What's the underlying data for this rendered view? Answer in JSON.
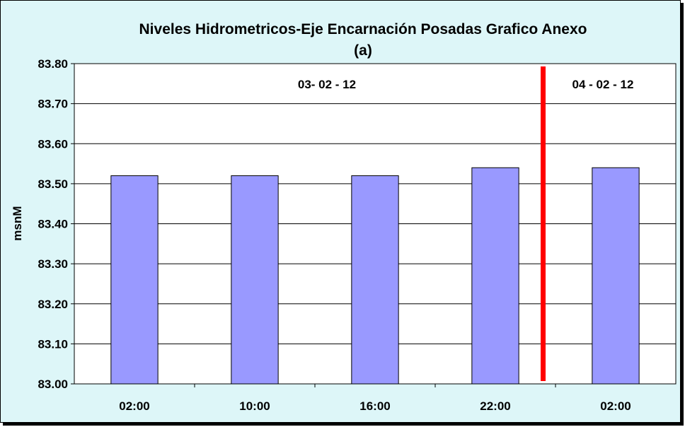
{
  "chart_data": {
    "type": "bar",
    "title": "Niveles Hidrometricos-Eje Encarnación Posadas Grafico Anexo",
    "subtitle": "(a)",
    "xlabel": "",
    "ylabel": "msnM",
    "categories": [
      "02:00",
      "10:00",
      "16:00",
      "22:00",
      "02:00"
    ],
    "values": [
      83.52,
      83.52,
      83.52,
      83.54,
      83.54
    ],
    "ylim": [
      83.0,
      83.8
    ],
    "yticks": [
      83.0,
      83.1,
      83.2,
      83.3,
      83.4,
      83.5,
      83.6,
      83.7,
      83.8
    ],
    "ytick_labels": [
      "83.00",
      "83.10",
      "83.20",
      "83.30",
      "83.40",
      "83.50",
      "83.60",
      "83.70",
      "83.80"
    ],
    "grid": true,
    "legend": "none",
    "annotations": [
      {
        "text": "03- 02 - 12"
      },
      {
        "text": "04 - 02 - 12"
      }
    ],
    "colors": {
      "bar": "#9999ff",
      "plot_background": "#ffffff",
      "chart_background": "#ddf6f8",
      "divider": "#ff0000"
    }
  }
}
